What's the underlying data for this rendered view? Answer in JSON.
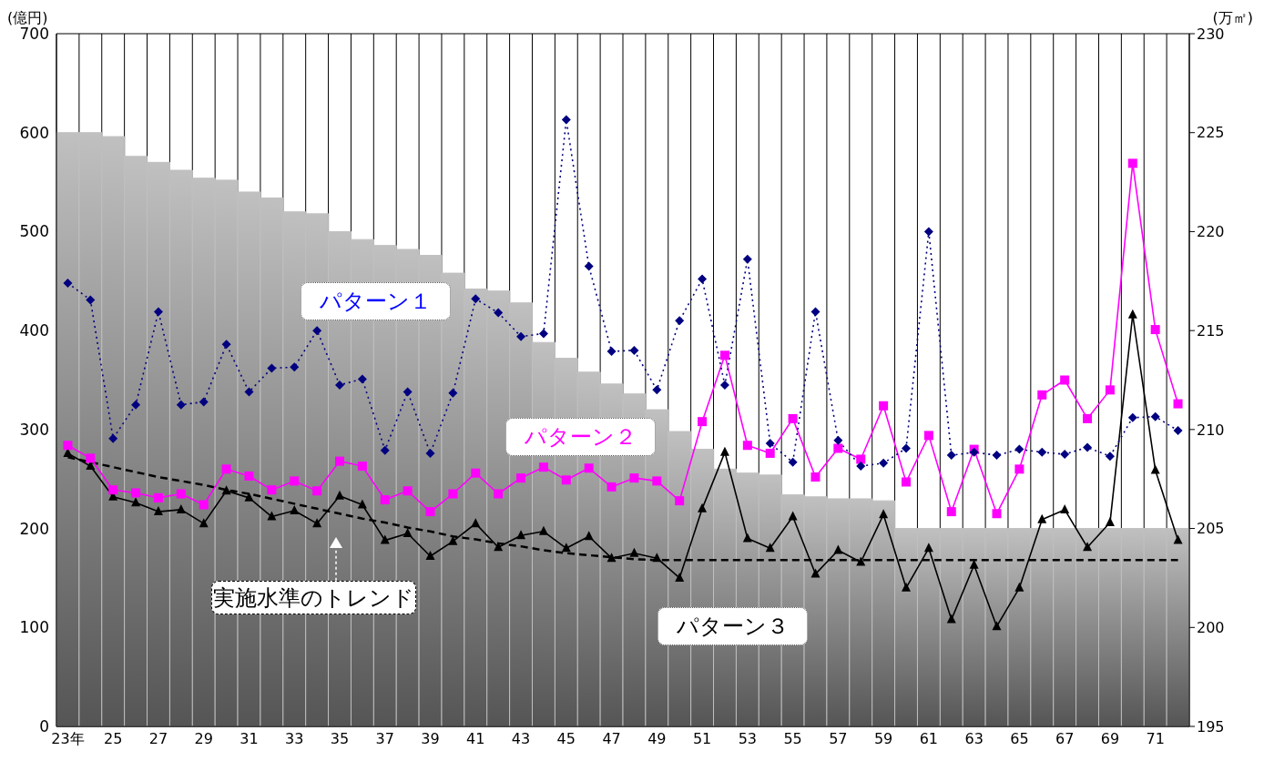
{
  "chart_data": {
    "type": "bar",
    "ylabel": "(億円)",
    "y2label": "(万㎡)",
    "categories": [
      "23年",
      null,
      "25",
      null,
      "27",
      null,
      "29",
      null,
      "31",
      null,
      "33",
      null,
      "35",
      null,
      "37",
      null,
      "39",
      null,
      "41",
      null,
      "43",
      null,
      "45",
      null,
      "47",
      null,
      "49",
      null,
      "51",
      null,
      "53",
      null,
      "55",
      null,
      "57",
      null,
      "59",
      null,
      "61",
      null,
      "63",
      null,
      "65",
      null,
      "67",
      null,
      "69",
      null,
      "71",
      null
    ],
    "series": [
      {
        "axis": "y2",
        "color": "#c0c0c0",
        "values": [
          225,
          225,
          224.8,
          223.8,
          223.5,
          223.1,
          222.7,
          222.6,
          222,
          221.7,
          221,
          220.9,
          220,
          219.6,
          219.3,
          219.1,
          218.8,
          217.9,
          217.1,
          217,
          216.4,
          214.4,
          213.6,
          212.9,
          212.3,
          211.8,
          211,
          209.9,
          209,
          208,
          207.8,
          207.7,
          206.7,
          206.6,
          206.5,
          206.5,
          206.4,
          205,
          205,
          205,
          205,
          205,
          205,
          205,
          205,
          205,
          205,
          205,
          205,
          205
        ]
      },
      {
        "type": "line",
        "name": "パターン１",
        "color": "#000080",
        "marker": "diamond",
        "line_style": "dotted",
        "values": [
          448,
          431,
          291,
          325,
          419,
          325,
          328,
          386,
          338,
          362,
          363,
          400,
          345,
          351,
          279,
          338,
          276,
          337,
          432,
          418,
          394,
          397,
          613,
          465,
          379,
          380,
          340,
          410,
          452,
          345,
          472,
          286,
          267,
          419,
          289,
          263,
          266,
          281,
          500,
          274,
          277,
          274,
          280,
          277,
          275,
          282,
          273,
          312,
          313,
          299
        ]
      },
      {
        "type": "line",
        "name": "パターン２",
        "color": "#ff00ff",
        "marker": "square",
        "line_style": "solid",
        "values": [
          284,
          271,
          239,
          236,
          231,
          235,
          224,
          260,
          253,
          239,
          248,
          238,
          268,
          263,
          229,
          238,
          217,
          235,
          256,
          235,
          251,
          262,
          249,
          261,
          242,
          251,
          248,
          228,
          308,
          375,
          284,
          276,
          311,
          252,
          281,
          270,
          324,
          247,
          294,
          217,
          280,
          215,
          260,
          335,
          350,
          311,
          340,
          569,
          401,
          326
        ]
      },
      {
        "type": "line",
        "name": "パターン３",
        "color": "#000000",
        "marker": "triangle",
        "line_style": "solid",
        "values": [
          276,
          263,
          232,
          226,
          217,
          219,
          205,
          238,
          231,
          212,
          218,
          205,
          233,
          224,
          188,
          195,
          172,
          187,
          205,
          181,
          193,
          197,
          180,
          192,
          170,
          175,
          170,
          150,
          220,
          277,
          190,
          180,
          212,
          154,
          178,
          166,
          214,
          140,
          180,
          108,
          163,
          101,
          140,
          209,
          219,
          181,
          206,
          416,
          259,
          188
        ]
      },
      {
        "type": "line",
        "name": "実施水準のトレンド",
        "color": "#000000",
        "marker": "none",
        "line_style": "dashed",
        "values": [
          272,
          267,
          262,
          257,
          252,
          248,
          244,
          239,
          235,
          230,
          225,
          220,
          215,
          210,
          206,
          201,
          197,
          192,
          189,
          185,
          182,
          178,
          175,
          173,
          171,
          169,
          168,
          168,
          168,
          168,
          168,
          168,
          168,
          168,
          168,
          168,
          168,
          168,
          168,
          168,
          168,
          168,
          168,
          168,
          168,
          168,
          168,
          168,
          168,
          168
        ]
      }
    ],
    "ylim": [
      0,
      700
    ],
    "yticks": [
      0,
      100,
      200,
      300,
      400,
      500,
      600,
      700
    ],
    "y2lim": [
      195,
      230
    ],
    "y2ticks": [
      195,
      200,
      205,
      210,
      215,
      220,
      225,
      230
    ],
    "grid": true
  }
}
